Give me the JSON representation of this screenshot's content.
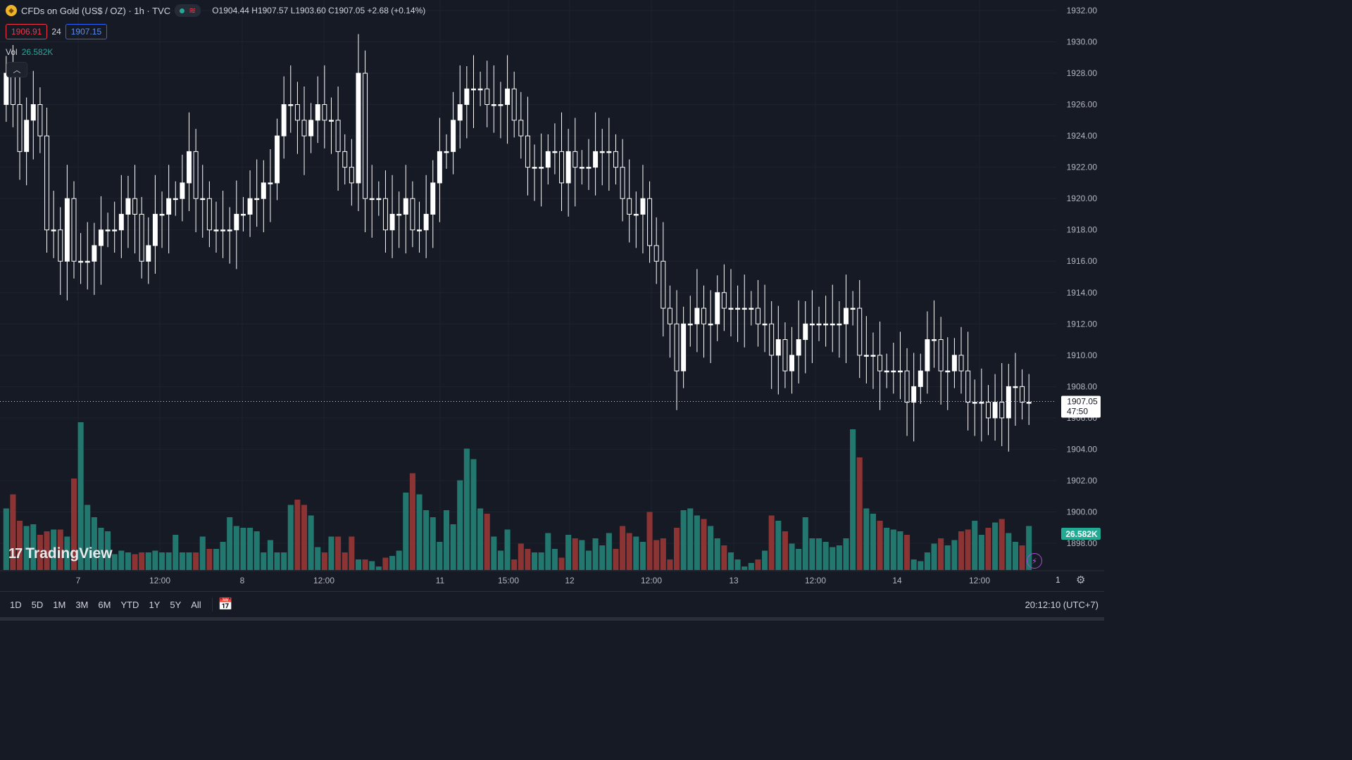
{
  "header": {
    "symbol_title": "CFDs on Gold (US$ / OZ) · 1h · TVC",
    "ohlc": {
      "o_label": "O",
      "o": "1904.44",
      "h_label": "H",
      "h": "1907.57",
      "l_label": "L",
      "l": "1903.60",
      "c_label": "C",
      "c": "1907.05",
      "change": "+2.68 (+0.14%)"
    },
    "bid": "1906.91",
    "spread": "24",
    "ask": "1907.15",
    "vol_label": "Vol",
    "vol_value": "26.582K"
  },
  "logo_text": "TradingView",
  "bottom": {
    "ranges": [
      "1D",
      "5D",
      "1M",
      "3M",
      "6M",
      "YTD",
      "1Y",
      "5Y",
      "All"
    ],
    "clock": "20:12:10 (UTC+7)",
    "time_scale_label": "1"
  },
  "colors": {
    "bg": "#161a25",
    "up_candle": "#ffffff",
    "down_candle": "#ffffff",
    "vol_up": "#22786f",
    "vol_down": "#8c3434",
    "grid": "#1f2330",
    "text": "#d1d4dc"
  },
  "chart_data": {
    "type": "candlestick",
    "y_axis_labels": [
      "1932.00",
      "1930.00",
      "1928.00",
      "1926.00",
      "1924.00",
      "1922.00",
      "1920.00",
      "1918.00",
      "1916.00",
      "1914.00",
      "1912.00",
      "1910.00",
      "1908.00",
      "1906.00",
      "1904.00",
      "1902.00",
      "1900.00",
      "1898.00"
    ],
    "ylim": [
      1897.5,
      1932.0
    ],
    "x_axis_labels": [
      "7",
      "12:00",
      "8",
      "12:00",
      "11",
      "15:00",
      "12",
      "12:00",
      "13",
      "12:00",
      "14",
      "12:00"
    ],
    "last_price": "1907.05",
    "countdown": "47:50",
    "volume_label": "26.582K",
    "closes": [
      1928,
      1926,
      1923,
      1925,
      1926,
      1924,
      1918,
      1918,
      1916,
      1920,
      1916,
      1916,
      1916,
      1917,
      1918,
      1918,
      1918,
      1919,
      1920,
      1919,
      1916,
      1917,
      1919,
      1919,
      1920,
      1920,
      1921,
      1923,
      1920,
      1920,
      1918,
      1918,
      1918,
      1918,
      1919,
      1919,
      1920,
      1920,
      1921,
      1921,
      1924,
      1926,
      1926,
      1925,
      1924,
      1925,
      1926,
      1925,
      1925,
      1923,
      1922,
      1921,
      1928,
      1920,
      1920,
      1920,
      1918,
      1919,
      1919,
      1920,
      1918,
      1918,
      1919,
      1921,
      1923,
      1923,
      1925,
      1926,
      1927,
      1927,
      1927,
      1926,
      1926,
      1926,
      1927,
      1925,
      1924,
      1922,
      1922,
      1922,
      1923,
      1923,
      1921,
      1923,
      1922,
      1922,
      1922,
      1923,
      1923,
      1923,
      1922,
      1920,
      1919,
      1919,
      1920,
      1917,
      1916,
      1913,
      1912,
      1909,
      1912,
      1912,
      1913,
      1912,
      1912,
      1914,
      1913,
      1913,
      1913,
      1913,
      1913,
      1912,
      1912,
      1910,
      1911,
      1909,
      1910,
      1911,
      1912,
      1912,
      1912,
      1912,
      1912,
      1912,
      1913,
      1913,
      1910,
      1910,
      1910,
      1909,
      1909,
      1909,
      1909,
      1907,
      1908,
      1909,
      1911,
      1911,
      1909,
      1909,
      1910,
      1909,
      1907,
      1907,
      1907,
      1906,
      1907,
      1906,
      1908,
      1908,
      1907,
      1907
    ],
    "volumes": [
      35,
      43,
      28,
      25,
      26,
      20,
      22,
      23,
      23,
      19,
      52,
      84,
      37,
      30,
      24,
      22,
      9,
      11,
      10,
      9,
      10,
      10,
      11,
      10,
      10,
      20,
      10,
      10,
      10,
      19,
      12,
      12,
      16,
      30,
      25,
      24,
      24,
      22,
      10,
      17,
      10,
      10,
      37,
      40,
      37,
      31,
      13,
      10,
      19,
      19,
      10,
      19,
      6,
      6,
      5,
      2,
      7,
      8,
      11,
      44,
      55,
      43,
      34,
      30,
      16,
      34,
      26,
      51,
      69,
      63,
      35,
      32,
      19,
      11,
      23,
      6,
      15,
      12,
      10,
      10,
      21,
      12,
      7,
      20,
      18,
      17,
      11,
      18,
      14,
      21,
      12,
      25,
      21,
      19,
      16,
      33,
      17,
      18,
      6,
      24,
      34,
      35,
      31,
      29,
      25,
      18,
      14,
      10,
      6,
      2,
      4,
      6,
      11,
      31,
      28,
      22,
      15,
      12,
      30,
      18,
      18,
      16,
      13,
      14,
      18,
      80,
      64,
      35,
      32,
      28,
      24,
      23,
      22,
      20,
      6,
      5,
      10,
      15,
      18,
      14,
      17,
      22,
      23,
      28,
      20,
      24,
      27,
      29,
      21,
      16,
      14,
      25
    ]
  }
}
